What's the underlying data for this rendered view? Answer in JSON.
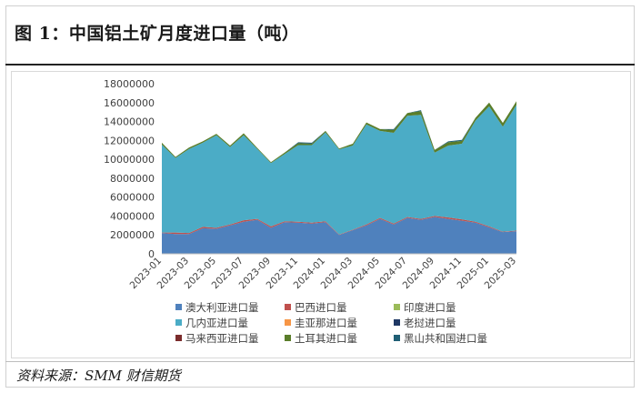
{
  "title": "图 1：中国铝土矿月度进口量（吨）",
  "source": "资料来源：SMM  财信期货",
  "colors": {
    "australia": "#4f81bd",
    "brazil": "#c0504d",
    "india": "#9bbb59",
    "guinea": "#4bacc6",
    "jamaica": "#f79646",
    "laos": "#1f3864",
    "malaysia": "#7b2c2c",
    "turkey": "#5a7d2a",
    "montenegro": "#1f5f75"
  },
  "chart_data": {
    "type": "area",
    "stacked": true,
    "x": [
      "2023-01",
      "2023-02",
      "2023-03",
      "2023-04",
      "2023-05",
      "2023-06",
      "2023-07",
      "2023-08",
      "2023-09",
      "2023-10",
      "2023-11",
      "2023-12",
      "2024-01",
      "2024-02",
      "2024-03",
      "2024-04",
      "2024-05",
      "2024-06",
      "2024-07",
      "2024-08",
      "2024-09",
      "2024-10",
      "2024-11",
      "2024-12",
      "2025-01",
      "2025-02",
      "2025-03"
    ],
    "xtick_labels": [
      "2023-01",
      "2023-03",
      "2023-05",
      "2023-07",
      "2023-09",
      "2023-11",
      "2024-01",
      "2024-03",
      "2024-05",
      "2024-07",
      "2024-09",
      "2024-11",
      "2025-01",
      "2025-03"
    ],
    "yticks": [
      "0",
      "2000000",
      "4000000",
      "6000000",
      "8000000",
      "10000000",
      "12000000",
      "14000000",
      "16000000",
      "18000000"
    ],
    "ylim": [
      0,
      18000000
    ],
    "grid": false,
    "legend_position": "bottom",
    "series": [
      {
        "name": "澳大利亚进口量",
        "color_key": "australia",
        "values": [
          2200000,
          2100000,
          2100000,
          2700000,
          2650000,
          3000000,
          3400000,
          3600000,
          2750000,
          3350000,
          3300000,
          3200000,
          3350000,
          2000000,
          2500000,
          3000000,
          3700000,
          3100000,
          3800000,
          3600000,
          3900000,
          3700000,
          3500000,
          3300000,
          2800000,
          2300000,
          2400000
        ]
      },
      {
        "name": "巴西进口量",
        "color_key": "brazil",
        "values": [
          50000,
          150000,
          100000,
          150000,
          100000,
          100000,
          150000,
          100000,
          150000,
          100000,
          100000,
          100000,
          100000,
          50000,
          50000,
          100000,
          100000,
          100000,
          100000,
          100000,
          100000,
          150000,
          150000,
          100000,
          100000,
          50000,
          50000
        ]
      },
      {
        "name": "印度进口量",
        "color_key": "india",
        "values": [
          0,
          0,
          0,
          0,
          0,
          0,
          0,
          0,
          0,
          0,
          0,
          0,
          0,
          0,
          0,
          0,
          0,
          0,
          0,
          0,
          0,
          0,
          0,
          0,
          0,
          0,
          0
        ]
      },
      {
        "name": "几内亚进口量",
        "color_key": "guinea",
        "values": [
          9300000,
          7900000,
          8900000,
          8900000,
          9800000,
          8200000,
          9000000,
          7400000,
          6700000,
          7100000,
          8100000,
          8200000,
          9400000,
          9000000,
          8900000,
          10600000,
          9200000,
          9600000,
          10700000,
          11000000,
          6700000,
          7600000,
          8000000,
          10700000,
          12700000,
          11100000,
          13300000
        ]
      },
      {
        "name": "圭亚那进口量",
        "color_key": "jamaica",
        "values": [
          0,
          0,
          0,
          0,
          0,
          0,
          0,
          0,
          0,
          0,
          0,
          0,
          0,
          0,
          0,
          0,
          0,
          0,
          0,
          0,
          0,
          0,
          0,
          0,
          0,
          0,
          0
        ]
      },
      {
        "name": "老挝进口量",
        "color_key": "laos",
        "values": [
          0,
          0,
          0,
          0,
          0,
          0,
          0,
          0,
          0,
          0,
          0,
          0,
          0,
          0,
          0,
          0,
          0,
          0,
          0,
          0,
          0,
          0,
          0,
          0,
          0,
          0,
          0
        ]
      },
      {
        "name": "马来西亚进口量",
        "color_key": "malaysia",
        "values": [
          0,
          0,
          0,
          0,
          0,
          0,
          0,
          0,
          0,
          0,
          0,
          0,
          0,
          0,
          0,
          0,
          0,
          0,
          0,
          0,
          0,
          0,
          0,
          0,
          0,
          0,
          0
        ]
      },
      {
        "name": "土耳其进口量",
        "color_key": "turkey",
        "values": [
          200000,
          100000,
          150000,
          150000,
          150000,
          150000,
          200000,
          100000,
          100000,
          150000,
          200000,
          150000,
          150000,
          100000,
          200000,
          200000,
          200000,
          300000,
          300000,
          400000,
          300000,
          350000,
          300000,
          300000,
          400000,
          400000,
          400000
        ]
      },
      {
        "name": "黑山共和国进口量",
        "color_key": "montenegro",
        "values": [
          0,
          0,
          0,
          0,
          0,
          0,
          0,
          0,
          0,
          0,
          100000,
          100000,
          0,
          0,
          0,
          0,
          0,
          100000,
          0,
          100000,
          0,
          100000,
          100000,
          0,
          0,
          0,
          0
        ]
      }
    ]
  }
}
